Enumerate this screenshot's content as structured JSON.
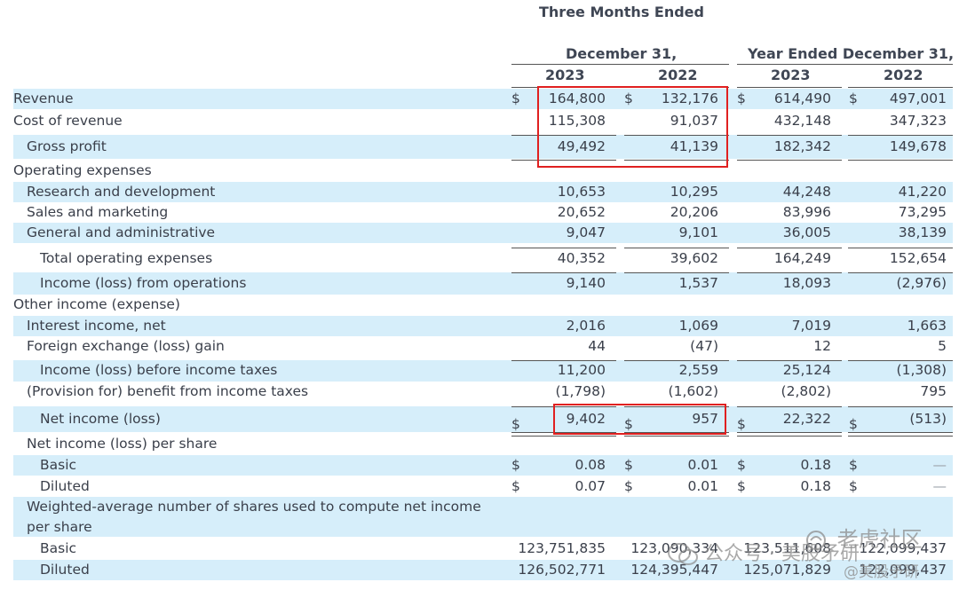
{
  "header": {
    "period_top": "Three Months Ended",
    "period_three_month": "December 31,",
    "period_year": "Year Ended December 31,",
    "year_a": "2023",
    "year_b": "2022",
    "year_c": "2023",
    "year_d": "2022"
  },
  "currency_symbol": "$",
  "rows": [
    {
      "label": "Revenue",
      "c1": "164,800",
      "c2": "132,176",
      "c3": "614,490",
      "c4": "497,001"
    },
    {
      "label": "Cost of revenue",
      "c1": "115,308",
      "c2": "91,037",
      "c3": "432,148",
      "c4": "347,323"
    },
    {
      "label": "Gross profit",
      "c1": "49,492",
      "c2": "41,139",
      "c3": "182,342",
      "c4": "149,678"
    },
    {
      "label": "Operating expenses",
      "c1": "",
      "c2": "",
      "c3": "",
      "c4": ""
    },
    {
      "label": "Research and development",
      "c1": "10,653",
      "c2": "10,295",
      "c3": "44,248",
      "c4": "41,220"
    },
    {
      "label": "Sales and marketing",
      "c1": "20,652",
      "c2": "20,206",
      "c3": "83,996",
      "c4": "73,295"
    },
    {
      "label": "General and administrative",
      "c1": "9,047",
      "c2": "9,101",
      "c3": "36,005",
      "c4": "38,139"
    },
    {
      "label": "Total operating expenses",
      "c1": "40,352",
      "c2": "39,602",
      "c3": "164,249",
      "c4": "152,654"
    },
    {
      "label": "Income (loss) from operations",
      "c1": "9,140",
      "c2": "1,537",
      "c3": "18,093",
      "c4": "(2,976)"
    },
    {
      "label": "Other income (expense)",
      "c1": "",
      "c2": "",
      "c3": "",
      "c4": ""
    },
    {
      "label": "Interest income, net",
      "c1": "2,016",
      "c2": "1,069",
      "c3": "7,019",
      "c4": "1,663"
    },
    {
      "label": "Foreign exchange (loss) gain",
      "c1": "44",
      "c2": "(47)",
      "c3": "12",
      "c4": "5"
    },
    {
      "label": "Income (loss) before income taxes",
      "c1": "11,200",
      "c2": "2,559",
      "c3": "25,124",
      "c4": "(1,308)"
    },
    {
      "label": "(Provision for) benefit from income taxes",
      "c1": "(1,798)",
      "c2": "(1,602)",
      "c3": "(2,802)",
      "c4": "795"
    },
    {
      "label": "Net income (loss)",
      "c1": "9,402",
      "c2": "957",
      "c3": "22,322",
      "c4": "(513)"
    },
    {
      "label": "Net income (loss) per share",
      "c1": "",
      "c2": "",
      "c3": "",
      "c4": ""
    },
    {
      "label": "Basic",
      "c1": "0.08",
      "c2": "0.01",
      "c3": "0.18",
      "c4": "—"
    },
    {
      "label": "Diluted",
      "c1": "0.07",
      "c2": "0.01",
      "c3": "0.18",
      "c4": "—"
    },
    {
      "label": "Weighted-average number of shares used to compute net income per share",
      "c1": "",
      "c2": "",
      "c3": "",
      "c4": ""
    },
    {
      "label": "Basic",
      "c1": "123,751,835",
      "c2": "123,090,334",
      "c3": "123,511,608",
      "c4": "122,099,437"
    },
    {
      "label": "Diluted",
      "c1": "126,502,771",
      "c2": "124,395,447",
      "c3": "125,071,829",
      "c4": "122,099,437"
    }
  ],
  "watermark": {
    "text1": "公众号 · 美股矛研",
    "text2": "老虎社区",
    "text3": "@美股矛研"
  }
}
